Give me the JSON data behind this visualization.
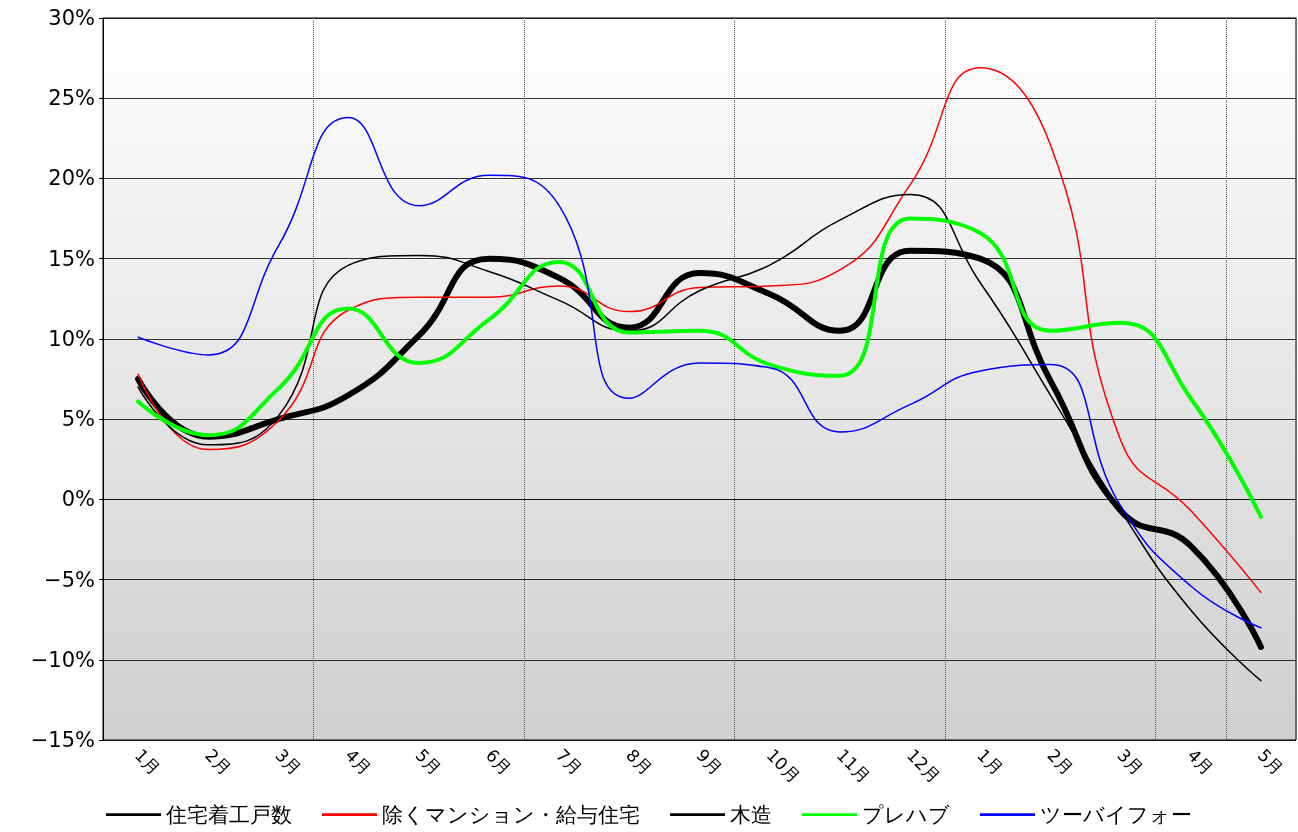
{
  "chart_data": {
    "type": "line",
    "categories": [
      "1月",
      "2月",
      "3月",
      "4月",
      "5月",
      "6月",
      "7月",
      "8月",
      "9月",
      "10月",
      "11月",
      "12月",
      "1月",
      "2月",
      "3月",
      "4月",
      "5月"
    ],
    "series": [
      {
        "name": "住宅着工戸数",
        "color": "#000000",
        "values": [
          7.5,
          3.9,
          5.0,
          6.5,
          10.2,
          15.0,
          13.8,
          10.7,
          14.1,
          12.8,
          10.5,
          15.5,
          15.0,
          7.4,
          -0.7,
          -2.9,
          -9.2
        ]
      },
      {
        "name": "除くマンション・給与住宅",
        "color": "#ff0000",
        "values": [
          7.8,
          3.1,
          4.9,
          11.8,
          12.6,
          12.6,
          13.3,
          11.7,
          13.2,
          13.3,
          14.3,
          19.6,
          26.9,
          22.1,
          3.7,
          -0.7,
          -5.8
        ]
      },
      {
        "name": "木造",
        "color": "#000000",
        "values": [
          7.0,
          3.4,
          5.2,
          14.6,
          15.2,
          14.2,
          12.4,
          10.5,
          13.0,
          14.6,
          17.4,
          19.0,
          13.5,
          6.5,
          -0.7,
          -6.9,
          -11.3
        ]
      },
      {
        "name": "プレハブ",
        "color": "#00ff00",
        "values": [
          6.1,
          4.0,
          6.9,
          11.9,
          8.5,
          11.2,
          14.8,
          10.4,
          10.5,
          8.4,
          7.7,
          17.5,
          16.6,
          10.5,
          11.0,
          6.3,
          -1.1
        ]
      },
      {
        "name": "ツーバイフォー",
        "color": "#0000ff",
        "values": [
          10.1,
          9.0,
          15.8,
          23.8,
          18.3,
          20.2,
          18.3,
          6.3,
          8.5,
          8.2,
          4.2,
          5.9,
          8.0,
          8.4,
          -0.4,
          -5.4,
          -8.0
        ]
      }
    ],
    "ylim": [
      -15,
      30
    ],
    "yticks": [
      {
        "value": -15,
        "label": "−15%"
      },
      {
        "value": -10,
        "label": "−10%"
      },
      {
        "value": -5,
        "label": "−5%"
      },
      {
        "value": 0,
        "label": "0%"
      },
      {
        "value": 5,
        "label": "5%"
      },
      {
        "value": 10,
        "label": "10%"
      },
      {
        "value": 15,
        "label": "15%"
      },
      {
        "value": 20,
        "label": "20%"
      },
      {
        "value": 25,
        "label": "25%"
      },
      {
        "value": 30,
        "label": "30%"
      }
    ],
    "grid": true,
    "legend": "bottom",
    "marker": "none",
    "line_style": "solid"
  }
}
